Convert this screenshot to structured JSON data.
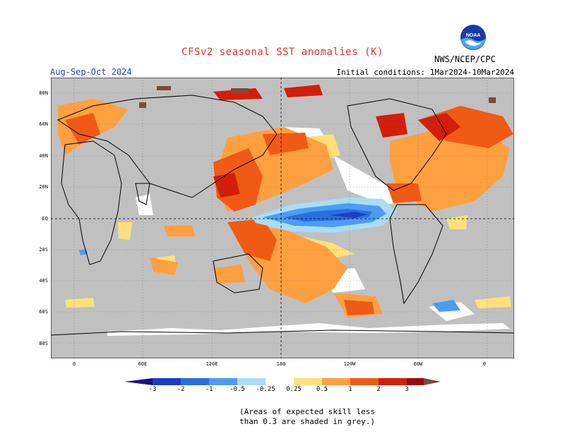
{
  "header": {
    "title": "CFSv2 seasonal SST anomalies (K)",
    "season": "Aug-Sep-Oct 2024",
    "initial_conditions": "Initial conditions: 1Mar2024-10Mar2024",
    "agency": "NWS/NCEP/CPC",
    "logo_icon": "noaa-logo-icon",
    "logo_text": "NOAA"
  },
  "map": {
    "latitude_labels": [
      "80N",
      "60N",
      "40N",
      "20N",
      "EQ",
      "20S",
      "40S",
      "60S",
      "80S"
    ],
    "longitude_labels": [
      "0",
      "60E",
      "120E",
      "180",
      "120W",
      "60W",
      "0"
    ],
    "colors": {
      "land_and_low_skill": "#c0c0c0",
      "ocean_neutral": "#ffffff",
      "coastline": "#000000"
    }
  },
  "colorbar": {
    "labels": [
      "-3",
      "-2",
      "-1",
      "-0.5",
      "-0.25",
      "0.25",
      "0.5",
      "1",
      "2",
      "3"
    ],
    "colors": [
      "#1a0f8c",
      "#1e3cc8",
      "#2a6fe0",
      "#4d9cf0",
      "#a9dcf5",
      "#ffffff",
      "#ffe07a",
      "#ffa040",
      "#f05a14",
      "#d21e0a",
      "#9b0a0a",
      "#7a4a3a"
    ]
  },
  "footnote": {
    "line1": "(Areas of expected skill less",
    "line2": "than 0.3 are shaded in grey.)"
  }
}
